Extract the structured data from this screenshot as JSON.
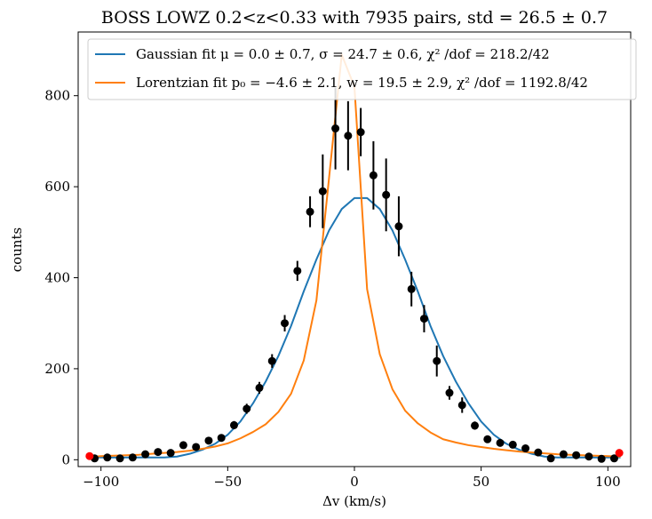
{
  "chart_data": {
    "type": "scatter",
    "title": "BOSS LOWZ 0.2<z<0.33 with 7935 pairs, std = 26.5 ± 0.7",
    "xlabel": "Δv (km/s)",
    "ylabel": "counts",
    "xlim": [
      -109,
      109
    ],
    "ylim": [
      -15,
      940
    ],
    "xticks": [
      -100,
      -50,
      0,
      50,
      100
    ],
    "yticks": [
      0,
      200,
      400,
      600,
      800
    ],
    "grid": false,
    "legend_position": "top-right",
    "legend": [
      {
        "label": "Gaussian fit μ = 0.0 ± 0.7,  σ = 24.7 ± 0.6, χ² /dof = 218.2/42",
        "color": "#1f77b4"
      },
      {
        "label": "Lorentzian fit p₀ = −4.6 ± 2.1, w = 19.5 ± 2.9, χ² /dof = 1192.8/42",
        "color": "#ff7f0e"
      }
    ],
    "series": [
      {
        "kind": "errorbar-points",
        "color": "#000000",
        "x": [
          -102.5,
          -97.5,
          -92.5,
          -87.5,
          -82.5,
          -77.5,
          -72.5,
          -67.5,
          -62.5,
          -57.5,
          -52.5,
          -47.5,
          -42.5,
          -37.5,
          -32.5,
          -27.5,
          -22.5,
          -17.5,
          -12.5,
          -7.5,
          -2.5,
          2.5,
          7.5,
          12.5,
          17.5,
          22.5,
          27.5,
          32.5,
          37.5,
          42.5,
          47.5,
          52.5,
          57.5,
          62.5,
          67.5,
          72.5,
          77.5,
          82.5,
          87.5,
          92.5,
          97.5,
          102.5
        ],
        "y": [
          3,
          5,
          3,
          5,
          12,
          17,
          15,
          32,
          28,
          42,
          48,
          76,
          112,
          158,
          217,
          300,
          415,
          545,
          590,
          728,
          712,
          720,
          625,
          582,
          513,
          375,
          310,
          217,
          147,
          120,
          75,
          45,
          37,
          33,
          25,
          16,
          3,
          12,
          10,
          7,
          2,
          3
        ],
        "yerr": [
          2,
          2,
          2,
          2,
          3,
          4,
          4,
          6,
          5,
          6,
          7,
          9,
          11,
          13,
          15,
          18,
          22,
          34,
          81,
          90,
          76,
          53,
          75,
          80,
          66,
          38,
          30,
          34,
          15,
          17,
          9,
          7,
          6,
          6,
          5,
          4,
          2,
          3,
          3,
          3,
          1,
          2
        ]
      },
      {
        "kind": "line",
        "color": "#1f77b4",
        "x": [
          -105,
          -100,
          -95,
          -90,
          -85,
          -80,
          -75,
          -70,
          -65,
          -60,
          -55,
          -50,
          -45,
          -40,
          -35,
          -30,
          -25,
          -20,
          -15,
          -10,
          -5,
          0,
          5,
          10,
          15,
          20,
          25,
          30,
          35,
          40,
          45,
          50,
          55,
          60,
          65,
          70,
          75,
          80,
          85,
          90,
          95,
          100,
          105
        ],
        "y": [
          5,
          5,
          5,
          5,
          5,
          5,
          5,
          7,
          13,
          22,
          35,
          55,
          84,
          124,
          172,
          228,
          294,
          370,
          440,
          504,
          551,
          575,
          575,
          551,
          504,
          440,
          370,
          294,
          228,
          172,
          124,
          84,
          55,
          35,
          22,
          13,
          7,
          5,
          5,
          5,
          5,
          5,
          5
        ]
      },
      {
        "kind": "line",
        "color": "#ff7f0e",
        "x": [
          -105,
          -100,
          -95,
          -90,
          -85,
          -80,
          -75,
          -70,
          -65,
          -60,
          -55,
          -50,
          -45,
          -40,
          -35,
          -30,
          -25,
          -20,
          -15,
          -10,
          -5,
          0,
          5,
          10,
          15,
          20,
          25,
          30,
          35,
          40,
          45,
          50,
          55,
          60,
          65,
          70,
          75,
          80,
          85,
          90,
          95,
          100,
          105
        ],
        "y": [
          6,
          8,
          9,
          10,
          11,
          13,
          15,
          17,
          20,
          24,
          29,
          36,
          47,
          61,
          78,
          105,
          145,
          218,
          350,
          620,
          890,
          820,
          375,
          232,
          155,
          108,
          80,
          60,
          45,
          38,
          32,
          28,
          24,
          21,
          18,
          16,
          14,
          12,
          11,
          10,
          9,
          8,
          7
        ]
      },
      {
        "kind": "points",
        "color": "#ff0000",
        "x": [
          -104.5,
          104.5
        ],
        "y": [
          8,
          15
        ]
      }
    ]
  }
}
